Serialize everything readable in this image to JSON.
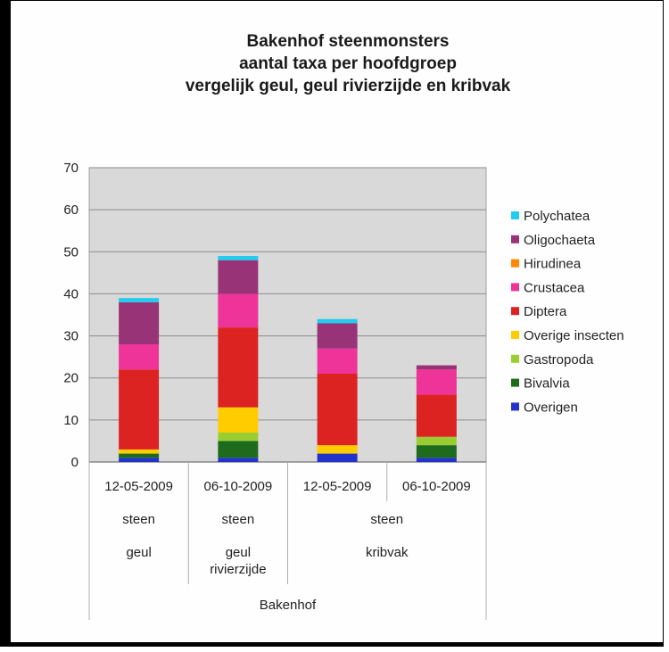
{
  "chart_data": {
    "type": "bar",
    "stacked": true,
    "title": [
      "Bakenhof steenmonsters",
      "aantal taxa per hoofdgroep",
      "vergelijk geul, geul rivierzijde en kribvak"
    ],
    "ylim": [
      0,
      70
    ],
    "yticks": [
      0,
      10,
      20,
      30,
      40,
      50,
      60,
      70
    ],
    "grid": true,
    "legend_position": "right",
    "categories": [
      "12-05-2009",
      "06-10-2009",
      "12-05-2009",
      "06-10-2009"
    ],
    "category_levels": {
      "level2": [
        {
          "label": "steen",
          "span": [
            0,
            0
          ]
        },
        {
          "label": "steen",
          "span": [
            1,
            1
          ]
        },
        {
          "label": "steen",
          "span": [
            2,
            3
          ]
        }
      ],
      "level3": [
        {
          "label": "geul",
          "span": [
            0,
            0
          ]
        },
        {
          "label": "geul rivierzijde",
          "lines": [
            "geul",
            "rivierzijde"
          ],
          "span": [
            1,
            1
          ]
        },
        {
          "label": "kribvak",
          "span": [
            2,
            3
          ]
        }
      ],
      "level4": [
        {
          "label": "Bakenhof",
          "span": [
            0,
            3
          ]
        }
      ]
    },
    "series": [
      {
        "name": "Overigen",
        "color": "#2233cc",
        "values": [
          1,
          1,
          2,
          1
        ]
      },
      {
        "name": "Bivalvia",
        "color": "#1e6b1e",
        "values": [
          1,
          4,
          0,
          3
        ]
      },
      {
        "name": "Gastropoda",
        "color": "#9acd32",
        "values": [
          0,
          2,
          0,
          2
        ]
      },
      {
        "name": "Overige insecten",
        "color": "#ffcc00",
        "values": [
          1,
          6,
          2,
          0
        ]
      },
      {
        "name": "Diptera",
        "color": "#dd2222",
        "values": [
          19,
          19,
          17,
          10
        ]
      },
      {
        "name": "Crustacea",
        "color": "#ee3399",
        "values": [
          6,
          8,
          6,
          6
        ]
      },
      {
        "name": "Hirudinea",
        "color": "#ff8800",
        "values": [
          0,
          0,
          0,
          0
        ]
      },
      {
        "name": "Oligochaeta",
        "color": "#993377",
        "values": [
          10,
          8,
          6,
          1
        ]
      },
      {
        "name": "Polychatea",
        "color": "#22ccee",
        "values": [
          1,
          1,
          1,
          0
        ]
      }
    ],
    "legend_order": [
      "Polychatea",
      "Oligochaeta",
      "Hirudinea",
      "Crustacea",
      "Diptera",
      "Overige insecten",
      "Gastropoda",
      "Bivalvia",
      "Overigen"
    ]
  }
}
